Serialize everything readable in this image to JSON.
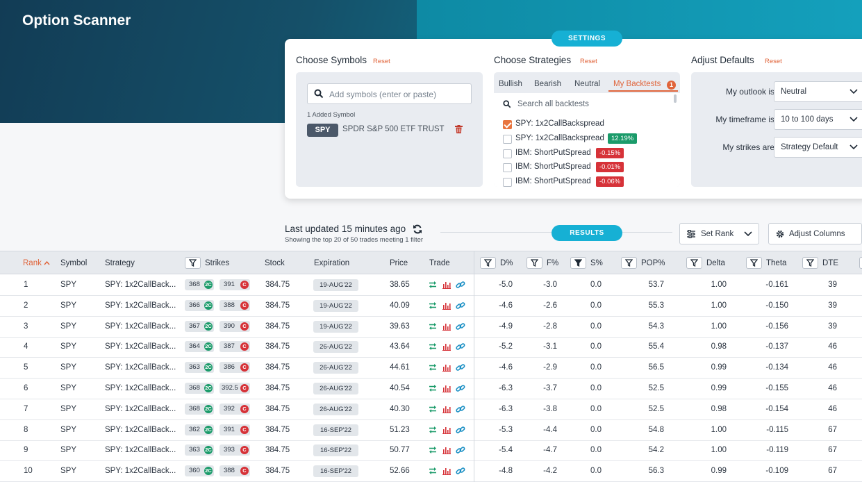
{
  "app": {
    "title": "Option Scanner"
  },
  "settings_label": "SETTINGS",
  "results_label": "RESULTS",
  "symbols": {
    "title": "Choose Symbols",
    "reset": "Reset",
    "placeholder": "Add symbols (enter or paste)",
    "added_label": "1 Added Symbol",
    "items": [
      {
        "ticker": "SPY",
        "name": "SPDR S&P 500 ETF TRUST"
      }
    ]
  },
  "strategies": {
    "title": "Choose Strategies",
    "reset": "Reset",
    "tabs": [
      "Bullish",
      "Bearish",
      "Neutral",
      "My Backtests"
    ],
    "active_tab": "My Backtests",
    "badge": "1",
    "search_placeholder": "Search all backtests",
    "items": [
      {
        "label": "SPY: 1x2CallBackspread",
        "checked": true,
        "pct": ""
      },
      {
        "label": "SPY: 1x2CallBackspread",
        "checked": false,
        "pct": "12.19%",
        "sign": "pos"
      },
      {
        "label": "IBM: ShortPutSpread",
        "checked": false,
        "pct": "-0.15%",
        "sign": "neg"
      },
      {
        "label": "IBM: ShortPutSpread",
        "checked": false,
        "pct": "-0.01%",
        "sign": "neg"
      },
      {
        "label": "IBM: ShortPutSpread",
        "checked": false,
        "pct": "-0.06%",
        "sign": "neg"
      }
    ]
  },
  "defaults": {
    "title": "Adjust Defaults",
    "reset": "Reset",
    "outlook_label": "My outlook is",
    "outlook_value": "Neutral",
    "timeframe_label": "My timeframe is",
    "timeframe_value": "10 to 100 days",
    "strikes_label": "My strikes are",
    "strikes_value": "Strategy Default"
  },
  "status": {
    "last_updated": "Last updated 15 minutes ago",
    "showing": "Showing the top 20 of 50 trades meeting 1 filter"
  },
  "toolbar": {
    "set_rank": "Set Rank",
    "adjust_columns": "Adjust Columns"
  },
  "columns": {
    "rank": "Rank",
    "symbol": "Symbol",
    "strategy": "Strategy",
    "strikes": "Strikes",
    "stock": "Stock",
    "expiration": "Expiration",
    "price": "Price",
    "trade": "Trade",
    "d": "D%",
    "f": "F%",
    "s": "S%",
    "pop": "POP%",
    "delta": "Delta",
    "theta": "Theta",
    "dte": "DTE"
  },
  "rows": [
    {
      "rank": "1",
      "symbol": "SPY",
      "strategy": "SPY: 1x2CallBack...",
      "k1": "368",
      "k2": "391",
      "stock": "384.75",
      "exp": "19-AUG'22",
      "price": "38.65",
      "d": "-5.0",
      "f": "-3.0",
      "s": "0.0",
      "pop": "53.7",
      "delta": "1.00",
      "theta": "-0.161",
      "dte": "39"
    },
    {
      "rank": "2",
      "symbol": "SPY",
      "strategy": "SPY: 1x2CallBack...",
      "k1": "366",
      "k2": "388",
      "stock": "384.75",
      "exp": "19-AUG'22",
      "price": "40.09",
      "d": "-4.6",
      "f": "-2.6",
      "s": "0.0",
      "pop": "55.3",
      "delta": "1.00",
      "theta": "-0.150",
      "dte": "39"
    },
    {
      "rank": "3",
      "symbol": "SPY",
      "strategy": "SPY: 1x2CallBack...",
      "k1": "367",
      "k2": "390",
      "stock": "384.75",
      "exp": "19-AUG'22",
      "price": "39.63",
      "d": "-4.9",
      "f": "-2.8",
      "s": "0.0",
      "pop": "54.3",
      "delta": "1.00",
      "theta": "-0.156",
      "dte": "39"
    },
    {
      "rank": "4",
      "symbol": "SPY",
      "strategy": "SPY: 1x2CallBack...",
      "k1": "364",
      "k2": "387",
      "stock": "384.75",
      "exp": "26-AUG'22",
      "price": "43.64",
      "d": "-5.2",
      "f": "-3.1",
      "s": "0.0",
      "pop": "55.4",
      "delta": "0.98",
      "theta": "-0.137",
      "dte": "46"
    },
    {
      "rank": "5",
      "symbol": "SPY",
      "strategy": "SPY: 1x2CallBack...",
      "k1": "363",
      "k2": "386",
      "stock": "384.75",
      "exp": "26-AUG'22",
      "price": "44.61",
      "d": "-4.6",
      "f": "-2.9",
      "s": "0.0",
      "pop": "56.5",
      "delta": "0.99",
      "theta": "-0.134",
      "dte": "46"
    },
    {
      "rank": "6",
      "symbol": "SPY",
      "strategy": "SPY: 1x2CallBack...",
      "k1": "368",
      "k2": "392.5",
      "stock": "384.75",
      "exp": "26-AUG'22",
      "price": "40.54",
      "d": "-6.3",
      "f": "-3.7",
      "s": "0.0",
      "pop": "52.5",
      "delta": "0.99",
      "theta": "-0.155",
      "dte": "46"
    },
    {
      "rank": "7",
      "symbol": "SPY",
      "strategy": "SPY: 1x2CallBack...",
      "k1": "368",
      "k2": "392",
      "stock": "384.75",
      "exp": "26-AUG'22",
      "price": "40.30",
      "d": "-6.3",
      "f": "-3.8",
      "s": "0.0",
      "pop": "52.5",
      "delta": "0.98",
      "theta": "-0.154",
      "dte": "46"
    },
    {
      "rank": "8",
      "symbol": "SPY",
      "strategy": "SPY: 1x2CallBack...",
      "k1": "362",
      "k2": "391",
      "stock": "384.75",
      "exp": "16-SEP'22",
      "price": "51.23",
      "d": "-5.3",
      "f": "-4.4",
      "s": "0.0",
      "pop": "54.8",
      "delta": "1.00",
      "theta": "-0.115",
      "dte": "67"
    },
    {
      "rank": "9",
      "symbol": "SPY",
      "strategy": "SPY: 1x2CallBack...",
      "k1": "363",
      "k2": "393",
      "stock": "384.75",
      "exp": "16-SEP'22",
      "price": "50.77",
      "d": "-5.4",
      "f": "-4.7",
      "s": "0.0",
      "pop": "54.2",
      "delta": "1.00",
      "theta": "-0.119",
      "dte": "67"
    },
    {
      "rank": "10",
      "symbol": "SPY",
      "strategy": "SPY: 1x2CallBack...",
      "k1": "360",
      "k2": "388",
      "stock": "384.75",
      "exp": "16-SEP'22",
      "price": "52.66",
      "d": "-4.8",
      "f": "-4.2",
      "s": "0.0",
      "pop": "56.3",
      "delta": "0.99",
      "theta": "-0.109",
      "dte": "67"
    }
  ],
  "strike_badges": {
    "leg1": "2C",
    "leg2": "C"
  },
  "colors": {
    "accent": "#e0643a",
    "teal": "#16b0d4",
    "positive": "#1b9b6a",
    "negative": "#d63238"
  }
}
